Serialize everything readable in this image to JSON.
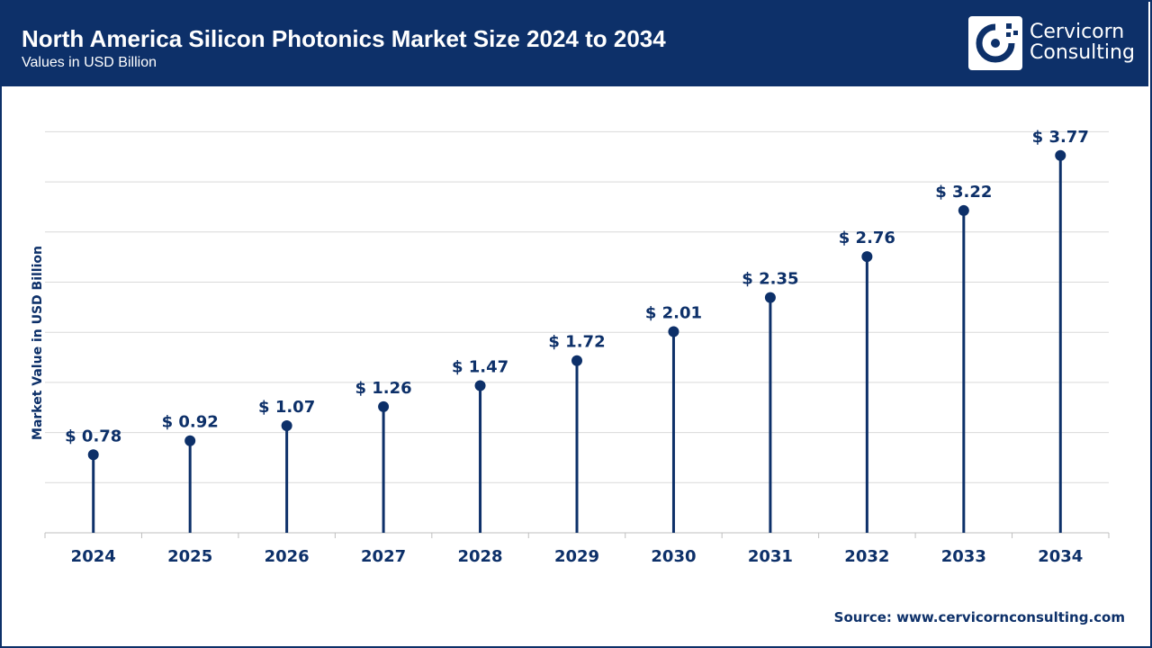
{
  "header": {
    "title": "North America Silicon Photonics Market Size 2024 to 2034",
    "subtitle": "Values in USD Billion",
    "brand_line1": "Cervicorn",
    "brand_line2": "Consulting"
  },
  "footer": {
    "source": "Source: www.cervicornconsulting.com"
  },
  "colors": {
    "primary": "#0d3069",
    "grid": "#d9d9d9",
    "background": "#ffffff"
  },
  "chart_data": {
    "type": "lollipop",
    "title": "North America Silicon Photonics Market Size 2024 to 2034",
    "subtitle": "Values in USD Billion",
    "xlabel": "",
    "ylabel": "Market Value in USD Billion",
    "categories": [
      "2024",
      "2025",
      "2026",
      "2027",
      "2028",
      "2029",
      "2030",
      "2031",
      "2032",
      "2033",
      "2034"
    ],
    "values": [
      0.78,
      0.92,
      1.07,
      1.26,
      1.47,
      1.72,
      2.01,
      2.35,
      2.76,
      3.22,
      3.77
    ],
    "data_labels": [
      "$ 0.78",
      "$ 0.92",
      "$ 1.07",
      "$ 1.26",
      "$ 1.47",
      "$ 1.72",
      "$ 2.01",
      "$ 2.35",
      "$ 2.76",
      "$ 3.22",
      "$ 3.77"
    ],
    "ylim": [
      0,
      4
    ],
    "grid": true,
    "legend": "none"
  }
}
